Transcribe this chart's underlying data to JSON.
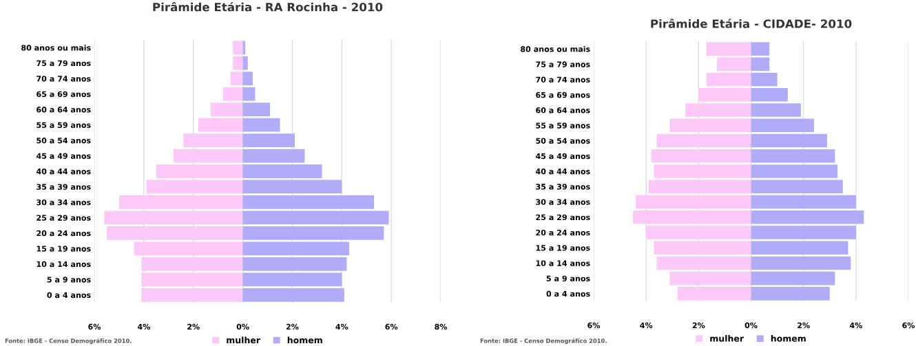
{
  "chart_data": [
    {
      "type": "bar",
      "orientation": "horizontal",
      "stacked": true,
      "title": "Pirâmide Etária - RA Rocinha - 2010",
      "categories": [
        "80 anos ou mais",
        "75 a 79 anos",
        "70 a 74 anos",
        "65 a 69 anos",
        "60 a 64 anos",
        "55 a 59 anos",
        "50 a 54 anos",
        "45 a 49 anos",
        "40 a 44 anos",
        "35 a 39 anos",
        "30 a 34 anos",
        "25 a 29 anos",
        "20 a 24 anos",
        "15 a 19 anos",
        "10 a 14 anos",
        "5 a 9 anos",
        "0 a 4 anos"
      ],
      "series": [
        {
          "name": "mulher",
          "color": "#fcc8f8",
          "values": [
            -0.4,
            -0.4,
            -0.5,
            -0.8,
            -1.3,
            -1.8,
            -2.4,
            -2.8,
            -3.5,
            -3.9,
            -5.0,
            -5.6,
            -5.5,
            -4.4,
            -4.1,
            -4.1,
            -4.1
          ]
        },
        {
          "name": "homem",
          "color": "#b0acf8",
          "values": [
            0.1,
            0.2,
            0.4,
            0.5,
            1.1,
            1.5,
            2.1,
            2.5,
            3.2,
            4.0,
            5.3,
            5.9,
            5.7,
            4.3,
            4.2,
            4.0,
            4.1
          ]
        }
      ],
      "xlim": [
        -6,
        8
      ],
      "xticks": [
        {
          "value": -6,
          "label": "6%"
        },
        {
          "value": -4,
          "label": "4%"
        },
        {
          "value": -2,
          "label": "2%"
        },
        {
          "value": 0,
          "label": "0%"
        },
        {
          "value": 2,
          "label": "2%"
        },
        {
          "value": 4,
          "label": "4%"
        },
        {
          "value": 6,
          "label": "6%"
        },
        {
          "value": 8,
          "label": "8%"
        }
      ],
      "grid": "x",
      "legend": "bottom",
      "annotations": [
        "Fonte: IBGE - Censo Demográfico 2010."
      ]
    },
    {
      "type": "bar",
      "orientation": "horizontal",
      "stacked": true,
      "title": "Pirâmide Etária - CIDADE- 2010",
      "categories": [
        "80 anos ou mais",
        "75 a 79 anos",
        "70 a 74 anos",
        "65 a 69 anos",
        "60 a 64 anos",
        "55 a 59 anos",
        "50 a 54 anos",
        "45 a 49 anos",
        "40 a 44 anos",
        "35 a 39 anos",
        "30 a 34 anos",
        "25 a 29 anos",
        "20 a 24 anos",
        "15 a 19 anos",
        "10 a 14 anos",
        "5 a 9 anos",
        "0 a 4 anos"
      ],
      "series": [
        {
          "name": "mulher",
          "color": "#fcc8f8",
          "values": [
            -1.7,
            -1.3,
            -1.7,
            -2.0,
            -2.5,
            -3.1,
            -3.6,
            -3.8,
            -3.7,
            -3.9,
            -4.4,
            -4.5,
            -4.0,
            -3.7,
            -3.6,
            -3.1,
            -2.8
          ]
        },
        {
          "name": "homem",
          "color": "#b0acf8",
          "values": [
            0.7,
            0.7,
            1.0,
            1.4,
            1.9,
            2.4,
            2.9,
            3.2,
            3.3,
            3.5,
            4.0,
            4.3,
            4.0,
            3.7,
            3.8,
            3.2,
            3.0
          ]
        }
      ],
      "xlim": [
        -6,
        6
      ],
      "xticks": [
        {
          "value": -6,
          "label": "6%"
        },
        {
          "value": -4,
          "label": "4%"
        },
        {
          "value": -2,
          "label": "2%"
        },
        {
          "value": 0,
          "label": "0%"
        },
        {
          "value": 2,
          "label": "2%"
        },
        {
          "value": 4,
          "label": "4%"
        },
        {
          "value": 6,
          "label": "6%"
        }
      ],
      "grid": "x",
      "legend": "bottom",
      "annotations": [
        "Fonte: IBGE - Censo Demográfico 2010."
      ]
    }
  ]
}
